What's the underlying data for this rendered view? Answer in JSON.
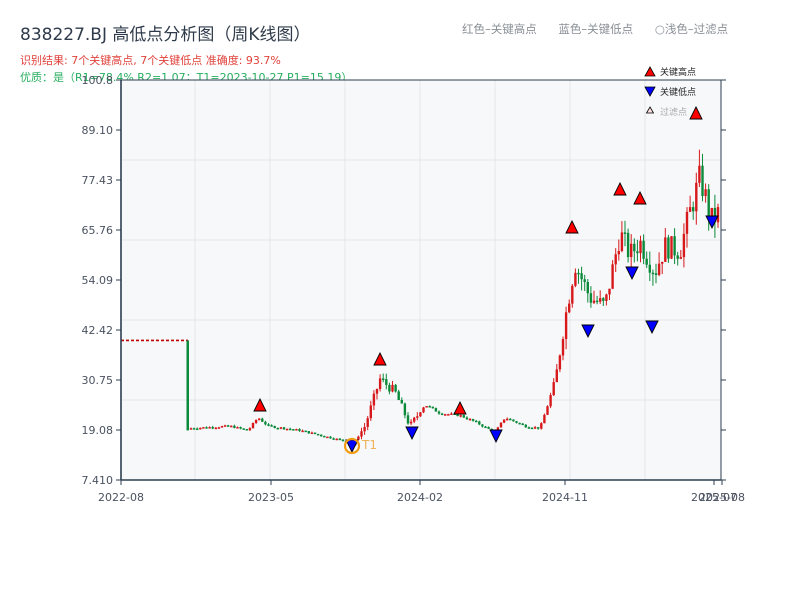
{
  "header": {
    "title": "838227.BJ 高低点分析图（周K线图）",
    "result_line": "识别结果: 7个关键高点, 7个关键低点  准确度: 93.7%",
    "quality_line": "优质：是（R1=78.4%  R2=1.07；T1=2023-10-27 P1=15.19）"
  },
  "top_legend": {
    "red": "红色–关键高点",
    "blue": "蓝色–关键低点",
    "light": "○浅色–过滤点"
  },
  "plot_legend": {
    "high": "关键高点",
    "low": "关键低点",
    "filtered": "过滤点"
  },
  "colors": {
    "up": "#d7191c",
    "down": "#0b8a3a",
    "high_marker": "#ff0000",
    "low_marker": "#0000ff",
    "t1_circle": "#f39c12",
    "axis": "#2c3e50",
    "grid": "#e3e6ea",
    "plot_bg": "#f7f8fa"
  },
  "t1_label": "T1",
  "chart_data": {
    "type": "candlestick",
    "title": "838227.BJ 高低点分析图（周K线图）",
    "xlabel": "",
    "ylabel": "",
    "ylim": [
      7.41,
      100.8
    ],
    "yticks": [
      "7.410",
      "19.08",
      "30.75",
      "42.42",
      "54.09",
      "65.76",
      "77.43",
      "89.10",
      "100.8"
    ],
    "xticks": [
      "2022-08",
      "2023-05",
      "2024-02",
      "2024-11",
      "2025-07",
      "2025-08"
    ],
    "grid": true,
    "legend_position": "upper right",
    "pre_listing_level": 40.0,
    "key_highs": [
      {
        "date": "2023-05",
        "price": 23.5
      },
      {
        "date": "2023-12",
        "price": 34.0
      },
      {
        "date": "2024-05",
        "price": 22.5
      },
      {
        "date": "2024-11",
        "price": 64.0
      },
      {
        "date": "2025-02",
        "price": 72.0
      },
      {
        "date": "2025-03",
        "price": 71.0
      },
      {
        "date": "2025-06",
        "price": 89.0
      }
    ],
    "key_lows": [
      {
        "date": "2023-10-27",
        "price": 15.19
      },
      {
        "date": "2024-02",
        "price": 18.0
      },
      {
        "date": "2024-08",
        "price": 17.0
      },
      {
        "date": "2024-12",
        "price": 41.5
      },
      {
        "date": "2025-02",
        "price": 53.0
      },
      {
        "date": "2025-04",
        "price": 42.0
      },
      {
        "date": "2025-07",
        "price": 63.0
      }
    ],
    "annotations": [
      {
        "label": "T1",
        "date": "2023-10-27",
        "price": 15.19
      }
    ]
  }
}
